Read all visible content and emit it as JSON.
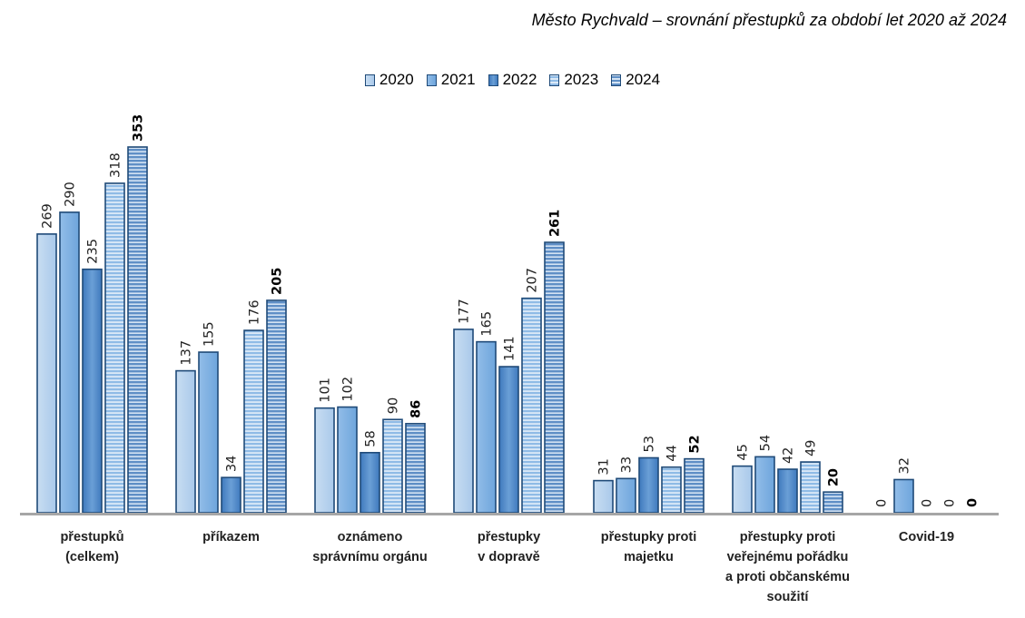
{
  "title": "Město Rychvald – srovnání přestupků za období let 2020 až 2024",
  "colors": {
    "2020": "#b4d0ec",
    "2021": "#7aaee0",
    "2022": "#4d86c6",
    "2023": "#9cc4ea",
    "2024": "#7ba7d5",
    "border": "#1f4a78",
    "axis": "#a6a6a6"
  },
  "chart_data": {
    "type": "bar",
    "title": "Město Rychvald – srovnání přestupků za období let 2020 až 2024",
    "xlabel": "",
    "ylabel": "",
    "ylim": [
      0,
      353
    ],
    "grid": false,
    "legend_position": "top-center",
    "categories": [
      [
        "přestupků",
        "(celkem)"
      ],
      [
        "příkazem"
      ],
      [
        "oznámeno",
        "správnímu orgánu"
      ],
      [
        "přestupky",
        "v dopravě"
      ],
      [
        "přestupky proti",
        "majetku"
      ],
      [
        "přestupky proti",
        "veřejnému pořádku",
        "a proti občanskému",
        "soužití"
      ],
      [
        "Covid-19"
      ]
    ],
    "series": [
      {
        "name": "2020",
        "values": [
          269,
          137,
          101,
          177,
          31,
          45,
          0
        ]
      },
      {
        "name": "2021",
        "values": [
          290,
          155,
          102,
          165,
          33,
          54,
          32
        ]
      },
      {
        "name": "2022",
        "values": [
          235,
          34,
          58,
          141,
          53,
          42,
          0
        ]
      },
      {
        "name": "2023",
        "values": [
          318,
          176,
          90,
          207,
          44,
          49,
          0
        ]
      },
      {
        "name": "2024",
        "values": [
          353,
          205,
          86,
          261,
          52,
          20,
          0
        ]
      }
    ]
  }
}
